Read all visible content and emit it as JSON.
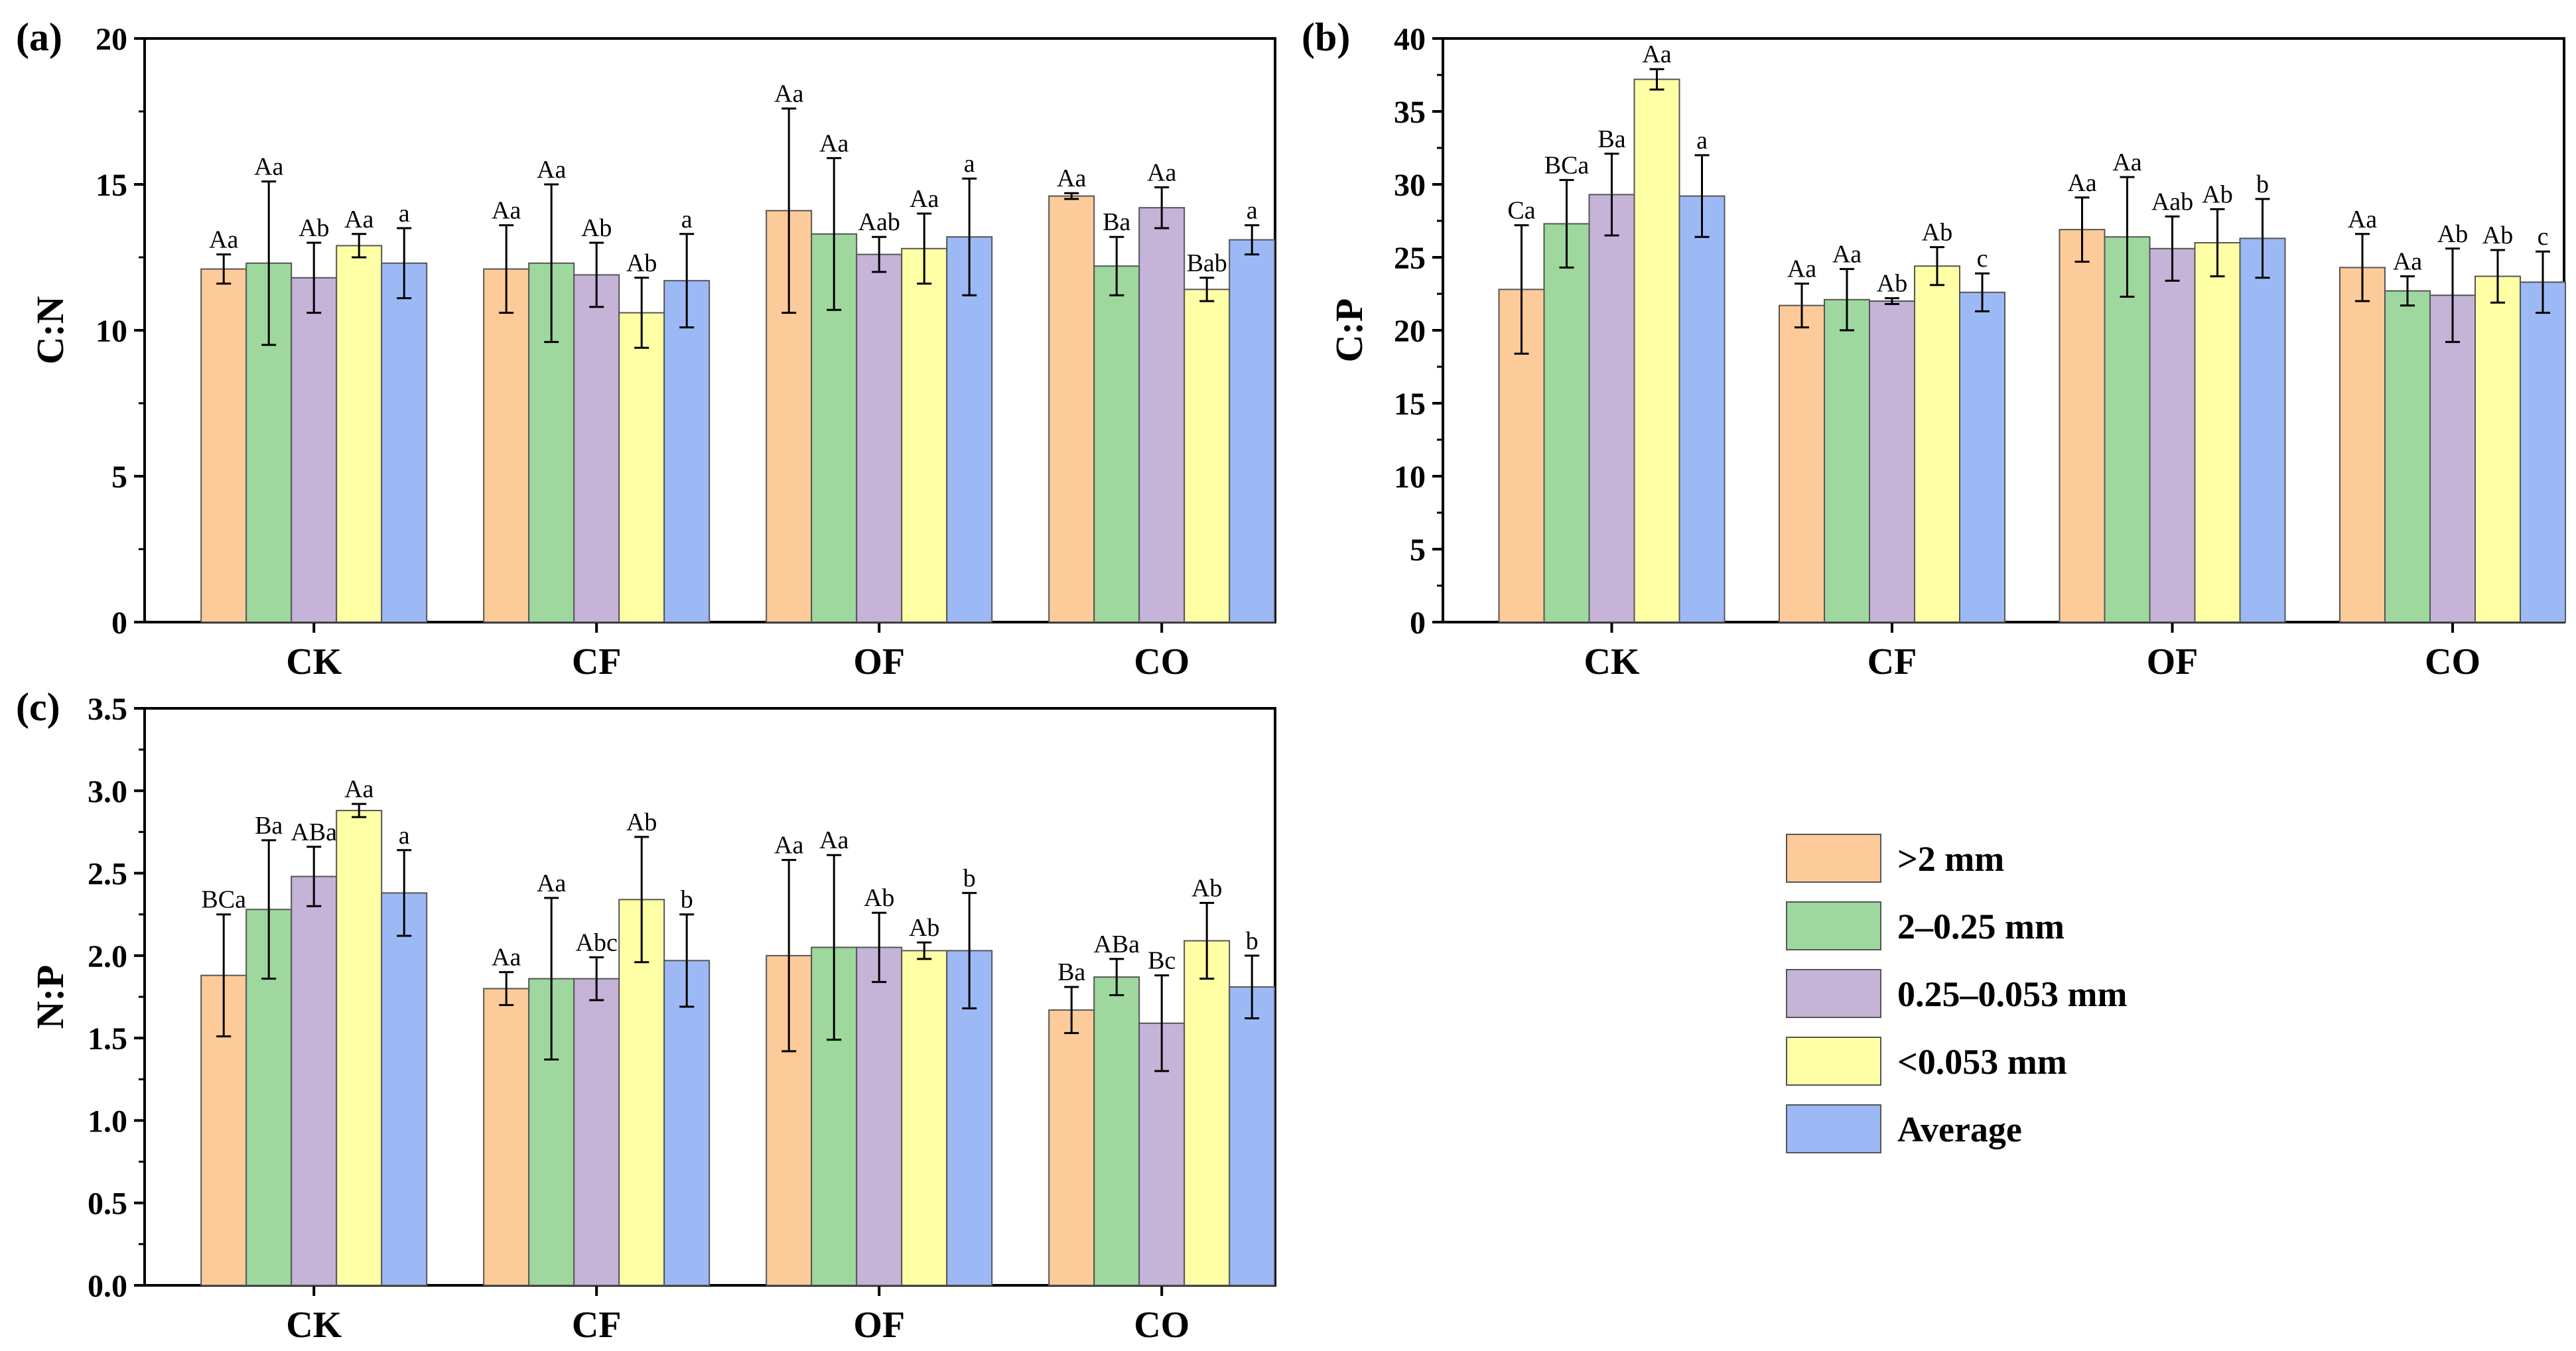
{
  "legend": {
    "items": [
      {
        "label": ">2 mm",
        "color": "#FDCB99"
      },
      {
        "label": "2–0.25 mm",
        "color": "#9ED89E"
      },
      {
        "label": "0.25–0.053 mm",
        "color": "#C5B3D8"
      },
      {
        "label": "<0.053 mm",
        "color": "#FFFFA6"
      },
      {
        "label": "Average",
        "color": "#9DB9F5"
      }
    ]
  },
  "chart_data": [
    {
      "type": "bar",
      "panel_letter": "(a)",
      "ylabel": "C:N",
      "xlabel": "",
      "ylim": [
        0,
        20
      ],
      "yticks": [
        0,
        5,
        10,
        15,
        20
      ],
      "categories": [
        "CK",
        "CF",
        "OF",
        "CO"
      ],
      "series": [
        {
          "name": ">2 mm",
          "values": [
            12.1,
            12.1,
            14.1,
            14.6
          ],
          "errors": [
            0.5,
            1.5,
            3.5,
            0.1
          ],
          "labels": [
            "Aa",
            "Aa",
            "Aa",
            "Aa"
          ]
        },
        {
          "name": "2–0.25 mm",
          "values": [
            12.3,
            12.3,
            13.3,
            12.2
          ],
          "errors": [
            2.8,
            2.7,
            2.6,
            1.0
          ],
          "labels": [
            "Aa",
            "Aa",
            "Aa",
            "Ba"
          ]
        },
        {
          "name": "0.25–0.053 mm",
          "values": [
            11.8,
            11.9,
            12.6,
            14.2
          ],
          "errors": [
            1.2,
            1.1,
            0.6,
            0.7
          ],
          "labels": [
            "Ab",
            "Ab",
            "Aab",
            "Aa"
          ]
        },
        {
          "name": "<0.053 mm",
          "values": [
            12.9,
            10.6,
            12.8,
            11.4
          ],
          "errors": [
            0.4,
            1.2,
            1.2,
            0.4
          ],
          "labels": [
            "Aa",
            "Ab",
            "Aa",
            "Bab"
          ]
        },
        {
          "name": "Average",
          "values": [
            12.3,
            11.7,
            13.2,
            13.1
          ],
          "errors": [
            1.2,
            1.6,
            2.0,
            0.5
          ],
          "labels": [
            "a",
            "a",
            "a",
            "a"
          ]
        }
      ]
    },
    {
      "type": "bar",
      "panel_letter": "(b)",
      "ylabel": "C:P",
      "xlabel": "",
      "ylim": [
        0,
        40
      ],
      "yticks": [
        0,
        5,
        10,
        15,
        20,
        25,
        30,
        35,
        40
      ],
      "categories": [
        "CK",
        "CF",
        "OF",
        "CO"
      ],
      "series": [
        {
          "name": ">2 mm",
          "values": [
            22.8,
            21.7,
            26.9,
            24.3
          ],
          "errors": [
            4.4,
            1.5,
            2.2,
            2.3
          ],
          "labels": [
            "Ca",
            "Aa",
            "Aa",
            "Aa"
          ]
        },
        {
          "name": "2–0.25 mm",
          "values": [
            27.3,
            22.1,
            26.4,
            22.7
          ],
          "errors": [
            3.0,
            2.1,
            4.1,
            1.0
          ],
          "labels": [
            "BCa",
            "Aa",
            "Aa",
            "Aa"
          ]
        },
        {
          "name": "0.25–0.053 mm",
          "values": [
            29.3,
            22.0,
            25.6,
            22.4
          ],
          "errors": [
            2.8,
            0.2,
            2.2,
            3.2
          ],
          "labels": [
            "Ba",
            "Ab",
            "Aab",
            "Ab"
          ]
        },
        {
          "name": "<0.053 mm",
          "values": [
            37.2,
            24.4,
            26.0,
            23.7
          ],
          "errors": [
            0.7,
            1.3,
            2.3,
            1.8
          ],
          "labels": [
            "Aa",
            "Ab",
            "Ab",
            "Ab"
          ]
        },
        {
          "name": "Average",
          "values": [
            29.2,
            22.6,
            26.3,
            23.3
          ],
          "errors": [
            2.8,
            1.3,
            2.7,
            2.1
          ],
          "labels": [
            "a",
            "c",
            "b",
            "c"
          ]
        }
      ]
    },
    {
      "type": "bar",
      "panel_letter": "(c)",
      "ylabel": "N:P",
      "xlabel": "",
      "ylim": [
        0,
        3.5
      ],
      "yticks": [
        0.0,
        0.5,
        1.0,
        1.5,
        2.0,
        2.5,
        3.0,
        3.5
      ],
      "ytick_labels": [
        "0.0",
        "0.5",
        "1.0",
        "1.5",
        "2.0",
        "2.5",
        "3.0",
        "3.5"
      ],
      "categories": [
        "CK",
        "CF",
        "OF",
        "CO"
      ],
      "series": [
        {
          "name": ">2 mm",
          "values": [
            1.88,
            1.8,
            2.0,
            1.67
          ],
          "errors": [
            0.37,
            0.1,
            0.58,
            0.14
          ],
          "labels": [
            "BCa",
            "Aa",
            "Aa",
            "Ba"
          ]
        },
        {
          "name": "2–0.25 mm",
          "values": [
            2.28,
            1.86,
            2.05,
            1.87
          ],
          "errors": [
            0.42,
            0.49,
            0.56,
            0.11
          ],
          "labels": [
            "Ba",
            "Aa",
            "Aa",
            "ABa"
          ]
        },
        {
          "name": "0.25–0.053 mm",
          "values": [
            2.48,
            1.86,
            2.05,
            1.59
          ],
          "errors": [
            0.18,
            0.13,
            0.21,
            0.29
          ],
          "labels": [
            "ABa",
            "Abc",
            "Ab",
            "Bc"
          ]
        },
        {
          "name": "<0.053 mm",
          "values": [
            2.88,
            2.34,
            2.03,
            2.09
          ],
          "errors": [
            0.04,
            0.38,
            0.05,
            0.23
          ],
          "labels": [
            "Aa",
            "Ab",
            "Ab",
            "Ab"
          ]
        },
        {
          "name": "Average",
          "values": [
            2.38,
            1.97,
            2.03,
            1.81
          ],
          "errors": [
            0.26,
            0.28,
            0.35,
            0.19
          ],
          "labels": [
            "a",
            "b",
            "b",
            "b"
          ]
        }
      ]
    }
  ]
}
